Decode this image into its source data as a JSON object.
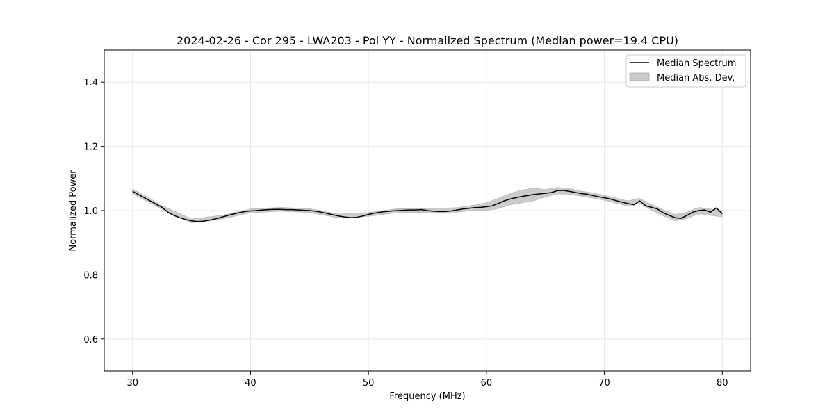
{
  "chart_data": {
    "type": "line",
    "title": "2024-02-26 - Cor 295 - LWA203 - Pol YY - Normalized Spectrum (Median power=19.4 CPU)",
    "xlabel": "Frequency (MHz)",
    "ylabel": "Normalized Power",
    "xlim": [
      27.6,
      82.4
    ],
    "ylim": [
      0.5,
      1.5
    ],
    "xticks": [
      30,
      40,
      50,
      60,
      70,
      80
    ],
    "yticks": [
      0.6,
      0.8,
      1.0,
      1.2,
      1.4
    ],
    "xtick_labels": [
      "30",
      "40",
      "50",
      "60",
      "70",
      "80"
    ],
    "ytick_labels": [
      "0.6",
      "0.8",
      "1.0",
      "1.2",
      "1.4"
    ],
    "grid": true,
    "legend_position": "top-right",
    "series": [
      {
        "name": "Median Spectrum",
        "style": "line",
        "color": "#000000",
        "x": [
          30,
          30.5,
          31,
          31.5,
          32,
          32.5,
          33,
          33.5,
          34,
          34.5,
          35,
          35.5,
          36,
          36.5,
          37,
          37.5,
          38,
          38.5,
          39,
          39.5,
          40,
          40.5,
          41,
          41.5,
          42,
          42.5,
          43,
          43.5,
          44,
          44.5,
          45,
          45.5,
          46,
          46.5,
          47,
          47.5,
          48,
          48.5,
          49,
          49.5,
          50,
          50.5,
          51,
          51.5,
          52,
          52.5,
          53,
          53.5,
          54,
          54.5,
          55,
          55.5,
          56,
          56.5,
          57,
          57.5,
          58,
          58.5,
          59,
          59.5,
          60,
          60.5,
          61,
          61.5,
          62,
          62.5,
          63,
          63.5,
          64,
          64.5,
          65,
          65.5,
          66,
          66.5,
          67,
          67.5,
          68,
          68.5,
          69,
          69.5,
          70,
          70.5,
          71,
          71.5,
          72,
          72.5,
          73,
          73.5,
          74,
          74.5,
          75,
          75.5,
          76,
          76.5,
          77,
          77.5,
          78,
          78.5,
          79,
          79.5,
          80
        ],
        "y": [
          1.06,
          1.05,
          1.04,
          1.03,
          1.02,
          1.01,
          0.995,
          0.985,
          0.978,
          0.972,
          0.968,
          0.966,
          0.967,
          0.97,
          0.974,
          0.979,
          0.984,
          0.989,
          0.993,
          0.997,
          0.999,
          1.0,
          1.002,
          1.003,
          1.004,
          1.004,
          1.003,
          1.003,
          1.002,
          1.001,
          1.0,
          0.998,
          0.995,
          0.991,
          0.987,
          0.983,
          0.98,
          0.978,
          0.979,
          0.983,
          0.988,
          0.992,
          0.995,
          0.997,
          0.999,
          1.0,
          1.001,
          1.002,
          1.002,
          1.003,
          1.0,
          0.998,
          0.997,
          0.997,
          0.999,
          1.002,
          1.005,
          1.007,
          1.009,
          1.01,
          1.012,
          1.015,
          1.022,
          1.03,
          1.036,
          1.04,
          1.044,
          1.047,
          1.05,
          1.052,
          1.054,
          1.056,
          1.062,
          1.063,
          1.06,
          1.057,
          1.053,
          1.051,
          1.047,
          1.043,
          1.04,
          1.036,
          1.031,
          1.026,
          1.022,
          1.018,
          1.03,
          1.015,
          1.01,
          1.005,
          0.993,
          0.985,
          0.978,
          0.976,
          0.985,
          0.995,
          1.0,
          1.002,
          0.995,
          1.008,
          0.99
        ]
      },
      {
        "name": "Median Abs. Dev.",
        "style": "band",
        "color": "#c8c8c8",
        "x": [
          30,
          32.5,
          35,
          37.5,
          40,
          42.5,
          45,
          47.5,
          50,
          52.5,
          55,
          57.5,
          59,
          60,
          61,
          62,
          63,
          64,
          65,
          66,
          67,
          68,
          69,
          70,
          71,
          72,
          73,
          74,
          75,
          76,
          77,
          78,
          79,
          80
        ],
        "half_width": [
          0.008,
          0.006,
          0.006,
          0.006,
          0.006,
          0.006,
          0.006,
          0.006,
          0.006,
          0.006,
          0.006,
          0.007,
          0.008,
          0.012,
          0.016,
          0.018,
          0.02,
          0.02,
          0.012,
          0.01,
          0.009,
          0.008,
          0.008,
          0.008,
          0.008,
          0.008,
          0.008,
          0.009,
          0.01,
          0.01,
          0.01,
          0.01,
          0.01,
          0.01
        ]
      }
    ]
  }
}
